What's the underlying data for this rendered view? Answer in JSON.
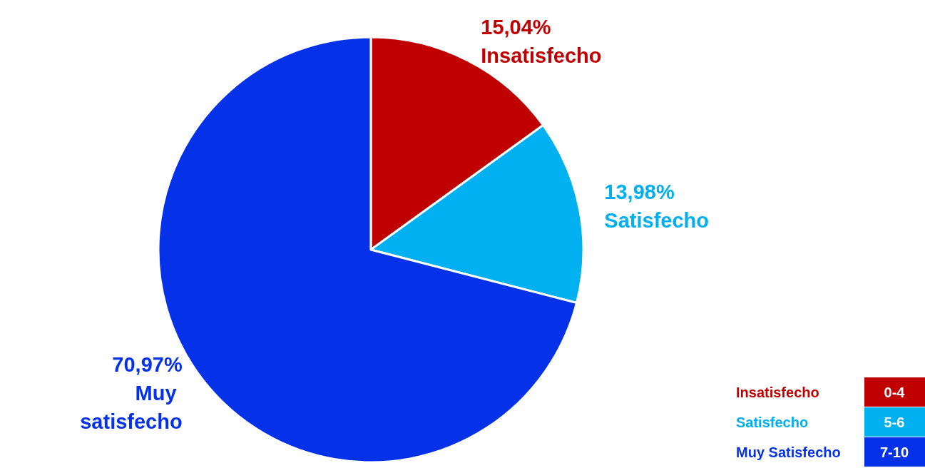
{
  "chart_data": {
    "type": "pie",
    "categories": [
      "Insatisfecho",
      "Satisfecho",
      "Muy satisfecho"
    ],
    "values": [
      15.04,
      13.98,
      70.97
    ],
    "colors": [
      "#c00000",
      "#00b0f0",
      "#0532e8"
    ],
    "value_labels": [
      "15,04%",
      "13,98%",
      "70,97%"
    ],
    "annotations": [
      "Insatisfecho",
      "0-4",
      "Satisfecho",
      "5-6",
      "Muy Satisfecho",
      "7-10"
    ]
  }
}
